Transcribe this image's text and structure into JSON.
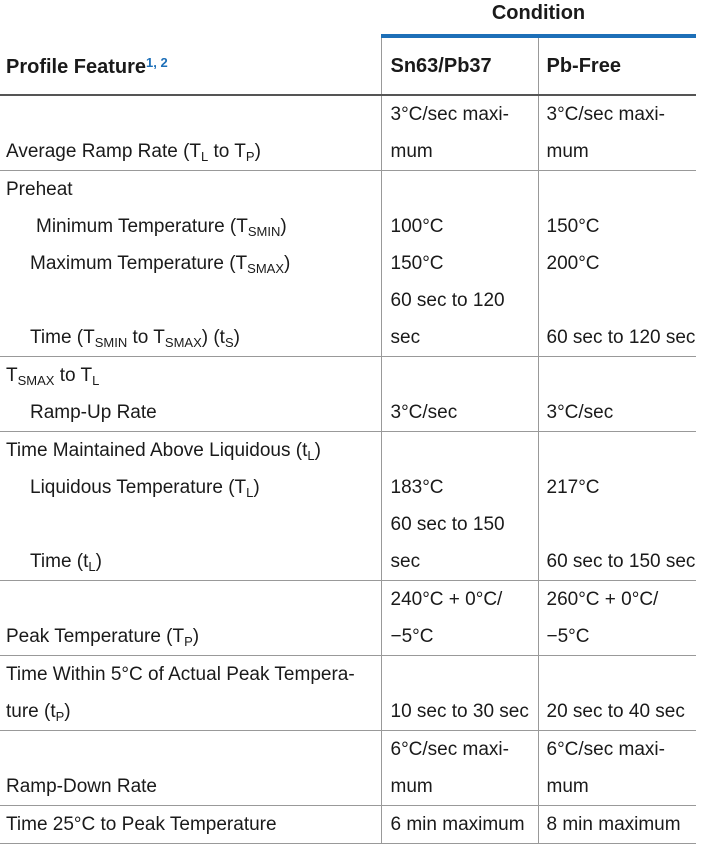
{
  "header": {
    "condition": "Condition",
    "feature_label": "Profile Feature",
    "feature_footnotes": "1, 2",
    "col_sn": "Sn63/Pb37",
    "col_pb": "Pb-Free"
  },
  "rows": {
    "avg_ramp": {
      "label_pre": "Average Ramp Rate (T",
      "label_sub1": "L",
      "label_mid": " to T",
      "label_sub2": "P",
      "label_post": ")",
      "sn_l1": "3°C/sec maxi-",
      "sn_l2": "mum",
      "pb_l1": "3°C/sec maxi-",
      "pb_l2": "mum"
    },
    "preheat": {
      "label": "Preheat",
      "min_pre": "Minimum Temperature (T",
      "min_sub": "SMIN",
      "min_post": ")",
      "min_sn": "100°C",
      "min_pb": "150°C",
      "max_pre": "Maximum Temperature (T",
      "max_sub": "SMAX",
      "max_post": ")",
      "max_sn": "150°C",
      "max_pb": "200°C",
      "time_pre": "Time (T",
      "time_sub1": "SMIN",
      "time_mid": " to T",
      "time_sub2": "SMAX",
      "time_mid2": ") (t",
      "time_sub3": "S",
      "time_post": ")",
      "time_sn_l1": "60 sec to 120",
      "time_sn_l2": "sec",
      "time_pb": "60 sec to 120 sec"
    },
    "tsmax_tl": {
      "label_pre": "T",
      "label_sub1": "SMAX",
      "label_mid": " to T",
      "label_sub2": "L",
      "ramp_label": "Ramp-Up Rate",
      "ramp_sn": "3°C/sec",
      "ramp_pb": "3°C/sec"
    },
    "liquidous": {
      "label_pre": "Time Maintained Above Liquidous (t",
      "label_sub": "L",
      "label_post": ")",
      "temp_pre": "Liquidous Temperature (T",
      "temp_sub": "L",
      "temp_post": ")",
      "temp_sn": "183°C",
      "temp_pb": "217°C",
      "time_pre": "Time (t",
      "time_sub": "L",
      "time_post": ")",
      "time_sn_l1": "60 sec to 150",
      "time_sn_l2": "sec",
      "time_pb": "60 sec to 150 sec"
    },
    "peak": {
      "label_pre": "Peak Temperature (T",
      "label_sub": "P",
      "label_post": ")",
      "sn_l1": "240°C + 0°C/",
      "sn_l2": "−5°C",
      "pb_l1": "260°C + 0°C/",
      "pb_l2": "−5°C"
    },
    "within5": {
      "label_l1": "Time Within 5°C of Actual Peak Tempera-",
      "label_l2_pre": "ture (t",
      "label_l2_sub": "P",
      "label_l2_post": ")",
      "sn": "10 sec to 30 sec",
      "pb": "20 sec to 40 sec"
    },
    "rampdown": {
      "label": "Ramp-Down Rate",
      "sn_l1": "6°C/sec maxi-",
      "sn_l2": "mum",
      "pb_l1": "6°C/sec maxi-",
      "pb_l2": "mum"
    },
    "time25": {
      "label": "Time 25°C to Peak Temperature",
      "sn": "6 min maximum",
      "pb": "8 min maximum"
    }
  }
}
